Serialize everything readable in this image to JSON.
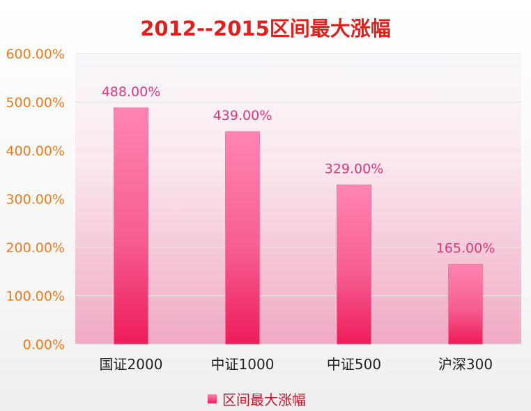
{
  "chart_data": {
    "type": "bar",
    "title": "2012--2015区间最大涨幅",
    "categories": [
      "国证2000",
      "中证1000",
      "中证500",
      "沪深300"
    ],
    "series": [
      {
        "name": "区间最大涨幅",
        "values": [
          488,
          439,
          329,
          165
        ]
      }
    ],
    "data_labels": [
      "488.00%",
      "439.00%",
      "329.00%",
      "165.00%"
    ],
    "y_ticks": [
      "0.00%",
      "100.00%",
      "200.00%",
      "300.00%",
      "400.00%",
      "500.00%",
      "600.00%"
    ],
    "ylim": [
      0,
      600
    ],
    "y_unit": "%",
    "grid": true,
    "legend_position": "bottom",
    "colors": {
      "bar_top": "#ff85b2",
      "bar_bottom": "#ee1c5a",
      "data_label": "#e0367c",
      "y_tick": "#f07a1a",
      "x_tick": "#222222",
      "title": "#e0201c",
      "legend_text": "#c0142a"
    }
  }
}
